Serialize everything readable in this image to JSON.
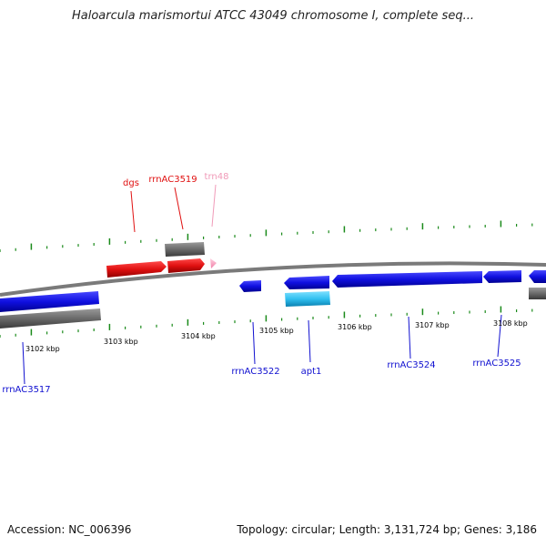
{
  "title": "Haloarcula marismortui ATCC 43049 chromosome I, complete seq...",
  "footer": {
    "accession": "Accession: NC_006396",
    "topology": "Topology: circular; Length: 3,131,724 bp; Genes: 3,186"
  },
  "colors": {
    "backbone": "#8a8a8a",
    "tick": "#1a8a1a",
    "rna_red": "#e01010",
    "trna_pink": "#f7a8c8",
    "rna_blue": "#1010e0",
    "cyan": "#30c0f0",
    "grey": "#6e6e6e"
  },
  "scale_labels": [
    "3102 kbp",
    "3103 kbp",
    "3104 kbp",
    "3105 kbp",
    "3106 kbp",
    "3107 kbp",
    "3108 kbp"
  ],
  "features": [
    {
      "name": "dgs",
      "color": "#e01010"
    },
    {
      "name": "rrnAC3519",
      "color": "#e01010"
    },
    {
      "name": "trn48",
      "color": "#f09ab8"
    },
    {
      "name": "rrnAC3517",
      "color": "#1010d0"
    },
    {
      "name": "rrnAC3522",
      "color": "#1010d0"
    },
    {
      "name": "apt1",
      "color": "#1010d0"
    },
    {
      "name": "rrnAC3524",
      "color": "#1010d0"
    },
    {
      "name": "rrnAC3525",
      "color": "#1010d0"
    }
  ]
}
